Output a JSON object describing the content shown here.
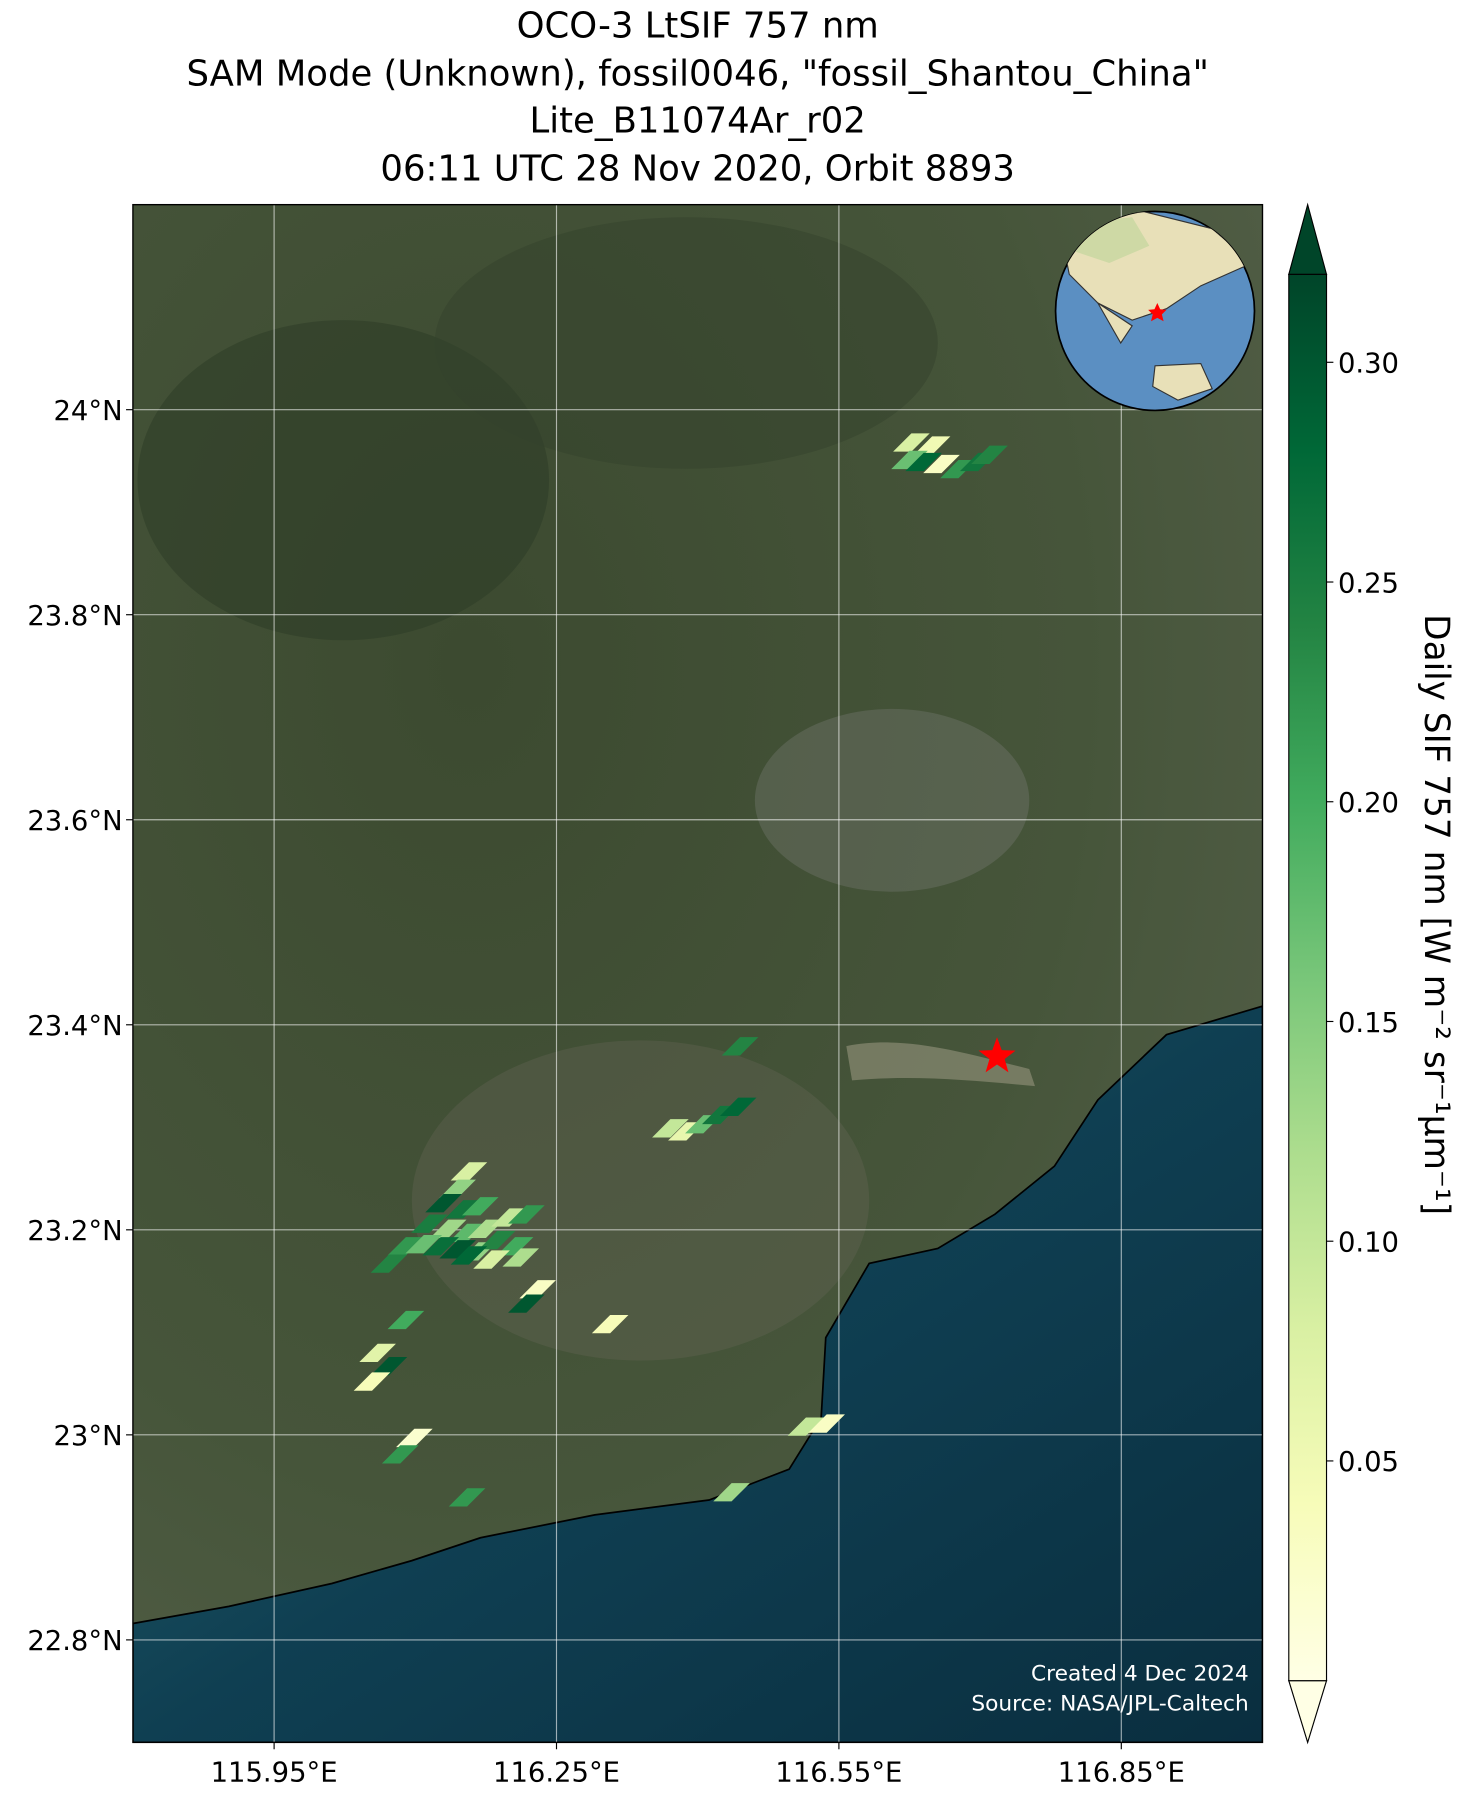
{
  "chart_data": {
    "type": "map",
    "title": [
      "OCO-3 LtSIF 757 nm",
      "SAM Mode (Unknown), fossil0046, \"fossil_Shantou_China\"",
      "Lite_B11074Ar_r02",
      "06:11 UTC 28 Nov 2020, Orbit 8893"
    ],
    "xlim": [
      115.8,
      117.0
    ],
    "ylim": [
      22.7,
      24.2
    ],
    "xticks": [
      {
        "value": 115.95,
        "label": "115.95°E"
      },
      {
        "value": 116.25,
        "label": "116.25°E"
      },
      {
        "value": 116.55,
        "label": "116.55°E"
      },
      {
        "value": 116.85,
        "label": "116.85°E"
      }
    ],
    "yticks": [
      {
        "value": 22.8,
        "label": "22.8°N"
      },
      {
        "value": 23,
        "label": "23°N"
      },
      {
        "value": 23.2,
        "label": "23.2°N"
      },
      {
        "value": 23.4,
        "label": "23.4°N"
      },
      {
        "value": 23.6,
        "label": "23.6°N"
      },
      {
        "value": 23.8,
        "label": "23.8°N"
      },
      {
        "value": 24,
        "label": "24°N"
      }
    ],
    "grid": true,
    "clim": [
      0,
      0.32
    ],
    "colorbar_ticks": [
      0.05,
      {
        "value": 0.1,
        "label": "0.10"
      },
      0.15,
      {
        "value": 0.2,
        "label": "0.20"
      },
      0.25,
      {
        "value": 0.3,
        "label": "0.30"
      }
    ],
    "colorbar_label": "Daily SIF 757 nm [W m⁻² sr⁻¹µm⁻¹]",
    "colormap": [
      "#ffffe5",
      "#f7fcb9",
      "#d9f0a3",
      "#addd8e",
      "#78c679",
      "#41ab5d",
      "#238443",
      "#006837",
      "#004529"
    ],
    "footprints": {
      "lon": [
        116.627,
        116.649,
        116.625,
        116.64,
        116.659,
        116.677,
        116.698,
        116.71,
        116.445,
        116.371,
        116.388,
        116.406,
        116.424,
        116.443,
        116.157,
        116.145,
        116.13,
        116.151,
        116.169,
        116.115,
        116.135,
        116.155,
        116.175,
        116.2,
        116.218,
        116.09,
        116.109,
        116.127,
        116.145,
        116.167,
        116.187,
        116.206,
        116.072,
        116.157,
        116.181,
        116.212,
        116.23,
        116.218,
        116.307,
        116.09,
        116.06,
        116.072,
        116.054,
        116.099,
        116.084,
        116.155,
        116.436,
        116.515,
        116.537
      ],
      "lat": [
        23.968,
        23.965,
        23.951,
        23.949,
        23.947,
        23.942,
        23.949,
        23.956,
        23.379,
        23.299,
        23.296,
        23.303,
        23.312,
        23.32,
        23.257,
        23.24,
        23.226,
        23.22,
        23.223,
        23.206,
        23.201,
        23.197,
        23.201,
        23.212,
        23.215,
        23.184,
        23.186,
        23.184,
        23.181,
        23.179,
        23.19,
        23.184,
        23.167,
        23.175,
        23.171,
        23.173,
        23.142,
        23.128,
        23.108,
        23.112,
        23.08,
        23.067,
        23.052,
        22.997,
        22.981,
        22.939,
        22.944,
        23.008,
        23.011
      ],
      "values": [
        0.08,
        0.05,
        0.17,
        0.28,
        0.03,
        0.22,
        0.26,
        0.24,
        0.24,
        0.1,
        0.06,
        0.17,
        0.26,
        0.28,
        0.08,
        0.14,
        0.3,
        0.26,
        0.2,
        0.25,
        0.13,
        0.18,
        0.12,
        0.1,
        0.22,
        0.22,
        0.17,
        0.27,
        0.3,
        0.14,
        0.24,
        0.2,
        0.24,
        0.28,
        0.08,
        0.12,
        0.03,
        0.3,
        0.04,
        0.2,
        0.07,
        0.3,
        0.04,
        0.02,
        0.22,
        0.22,
        0.13,
        0.1,
        0.03
      ]
    },
    "target": {
      "lon": 116.718,
      "lat": 23.369,
      "color": "#ff0000"
    },
    "footer": [
      "Created 4 Dec 2024",
      "Source: NASA/JPL-Caltech"
    ]
  }
}
